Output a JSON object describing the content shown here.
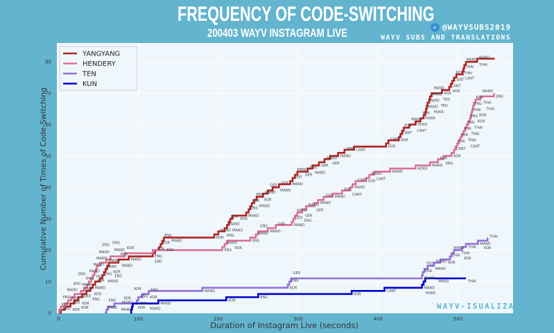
{
  "header": {
    "title": "FREQUENCY OF CODE-SWITCHING",
    "subtitle": "200403 WAYV INSTAGRAM LIVE",
    "handle": "@WAYVSUBS2019",
    "credit": "WAYV SUBS AND TRANSLATIONS",
    "watermark": "WAYV-ISUALIZATION"
  },
  "chart_data": {
    "type": "line",
    "step": true,
    "title": "FREQUENCY OF CODE-SWITCHING",
    "subtitle": "200403 WAYV INSTAGRAM LIVE",
    "xlabel": "Duration of Instagram Live (seconds)",
    "ylabel": "Cumulative Number of Times of Code-Switching",
    "xlim": [
      -2,
      569
    ],
    "ylim": [
      0,
      86
    ],
    "xticks": [
      0,
      100,
      200,
      300,
      400,
      500
    ],
    "yticks": [
      0,
      10,
      20,
      30,
      40,
      50,
      60,
      70,
      80
    ],
    "grid": true,
    "legend": "top-left",
    "series": [
      {
        "name": "YANGYANG",
        "color": "#b22222",
        "points": [
          [
            0,
            0,
            ""
          ],
          [
            3,
            1,
            "ENG"
          ],
          [
            8,
            2,
            "KOR"
          ],
          [
            15,
            3,
            "ENG"
          ],
          [
            20,
            4,
            "KOR"
          ],
          [
            25,
            5,
            "MAND"
          ],
          [
            30,
            6,
            "ENG"
          ],
          [
            35,
            7,
            "KOR"
          ],
          [
            40,
            8,
            "ENG"
          ],
          [
            43,
            9,
            "MAND"
          ],
          [
            46,
            10,
            "KOR"
          ],
          [
            52,
            11,
            "MAND"
          ],
          [
            55,
            12,
            "ENG"
          ],
          [
            57,
            13,
            "MAND"
          ],
          [
            59,
            14,
            "KOR"
          ],
          [
            61,
            15,
            "MAND"
          ],
          [
            63,
            16,
            "MAND"
          ],
          [
            75,
            17,
            "KOR"
          ],
          [
            88,
            18,
            "MAND"
          ],
          [
            118,
            19,
            "ENG"
          ],
          [
            121,
            20,
            "KOR"
          ],
          [
            126,
            21,
            "ENG"
          ],
          [
            128,
            22,
            "KOR"
          ],
          [
            130,
            23,
            "ENG"
          ],
          [
            132,
            24,
            "MAND"
          ],
          [
            195,
            25,
            "KOR"
          ],
          [
            200,
            26,
            "MAND"
          ],
          [
            208,
            27,
            "ENG"
          ],
          [
            211,
            28,
            "MAND"
          ],
          [
            213,
            29,
            "KOR"
          ],
          [
            215,
            30,
            "MAND"
          ],
          [
            218,
            31,
            "KOR"
          ],
          [
            235,
            32,
            "MAND"
          ],
          [
            238,
            33,
            "ENG"
          ],
          [
            240,
            34,
            "KOR"
          ],
          [
            242,
            35,
            "MAND"
          ],
          [
            245,
            36,
            "ENG"
          ],
          [
            248,
            37,
            "KOR"
          ],
          [
            256,
            38,
            "MAND"
          ],
          [
            262,
            39,
            "GER"
          ],
          [
            268,
            40,
            "MAND"
          ],
          [
            276,
            41,
            "GER"
          ],
          [
            290,
            42,
            "MAND"
          ],
          [
            293,
            43,
            "GER"
          ],
          [
            296,
            44,
            "MAND"
          ],
          [
            299,
            45,
            "GER"
          ],
          [
            312,
            46,
            "ENG"
          ],
          [
            318,
            47,
            "MAND"
          ],
          [
            326,
            48,
            "GER"
          ],
          [
            333,
            49,
            "MAND"
          ],
          [
            340,
            50,
            "GER"
          ],
          [
            350,
            51,
            "MAND"
          ],
          [
            358,
            52,
            "GER"
          ],
          [
            370,
            53,
            "CANT"
          ],
          [
            410,
            54,
            "KOR"
          ],
          [
            413,
            55,
            "CANT"
          ],
          [
            426,
            56,
            "KOR"
          ],
          [
            428,
            57,
            "CANT"
          ],
          [
            430,
            58,
            "KOR"
          ],
          [
            432,
            59,
            "CANT"
          ],
          [
            439,
            60,
            "MAND"
          ],
          [
            447,
            61,
            "HOKK"
          ],
          [
            453,
            62,
            "KOR"
          ],
          [
            457,
            63,
            "HOKK"
          ],
          [
            459,
            64,
            "MAND"
          ],
          [
            460,
            65,
            "HOKK"
          ],
          [
            461,
            66,
            "MAND"
          ],
          [
            462,
            67,
            "TEO"
          ],
          [
            464,
            68,
            "MAND"
          ],
          [
            465,
            69,
            "TEO"
          ],
          [
            467,
            70,
            "MAND"
          ],
          [
            480,
            71,
            "KOR"
          ],
          [
            489,
            72,
            "CANT"
          ],
          [
            491,
            73,
            "KOR"
          ],
          [
            493,
            74,
            "CANT"
          ],
          [
            495,
            75,
            "KOR"
          ],
          [
            498,
            76,
            "THAI"
          ],
          [
            506,
            77,
            "CANT"
          ],
          [
            507,
            78,
            "THAI"
          ],
          [
            508,
            79,
            "MAND"
          ],
          [
            510,
            80,
            "THAI"
          ],
          [
            524,
            81,
            "MAND"
          ],
          [
            546,
            81,
            ""
          ]
        ]
      },
      {
        "name": "HENDERY",
        "color": "#db7093",
        "points": [
          [
            0,
            0,
            ""
          ],
          [
            1,
            1,
            "KOR"
          ],
          [
            3,
            2,
            "ENG"
          ],
          [
            8,
            3,
            "MAND"
          ],
          [
            12,
            4,
            "KOR"
          ],
          [
            16,
            5,
            "ENG"
          ],
          [
            20,
            6,
            "MAND"
          ],
          [
            28,
            7,
            "KOR"
          ],
          [
            32,
            8,
            "ENG"
          ],
          [
            36,
            9,
            "MAND"
          ],
          [
            38,
            10,
            "KOR"
          ],
          [
            41,
            11,
            "MAND"
          ],
          [
            43,
            12,
            "ENG"
          ],
          [
            45,
            13,
            "MAND"
          ],
          [
            47,
            14,
            "ENG"
          ],
          [
            48,
            15,
            "MAND"
          ],
          [
            52,
            16,
            "ENG"
          ],
          [
            60,
            17,
            "MAND"
          ],
          [
            65,
            18,
            "ENG"
          ],
          [
            83,
            19,
            "KOR"
          ],
          [
            118,
            20,
            "ENG"
          ],
          [
            205,
            21,
            "ENG"
          ],
          [
            208,
            22,
            "MAND"
          ],
          [
            211,
            23,
            "KOR"
          ],
          [
            240,
            24,
            "ENG"
          ],
          [
            247,
            25,
            "MAND"
          ],
          [
            250,
            26,
            "ENG"
          ],
          [
            262,
            27,
            "MAND"
          ],
          [
            272,
            28,
            "GER"
          ],
          [
            292,
            29,
            "MAND"
          ],
          [
            294,
            30,
            "GER"
          ],
          [
            296,
            31,
            "MAND"
          ],
          [
            299,
            32,
            "GER"
          ],
          [
            305,
            33,
            "ENG"
          ],
          [
            310,
            34,
            "MAND"
          ],
          [
            320,
            35,
            "GER"
          ],
          [
            325,
            36,
            "MAND"
          ],
          [
            332,
            37,
            "GER"
          ],
          [
            343,
            38,
            "MAND"
          ],
          [
            355,
            39,
            "ENG"
          ],
          [
            365,
            40,
            "CANT"
          ],
          [
            368,
            41,
            "MAND"
          ],
          [
            372,
            42,
            "CANT"
          ],
          [
            385,
            43,
            "KOR"
          ],
          [
            389,
            44,
            "MAND"
          ],
          [
            395,
            45,
            "CANT"
          ],
          [
            415,
            46,
            "MAND"
          ],
          [
            447,
            47,
            "HOKK"
          ],
          [
            465,
            48,
            "MAND"
          ],
          [
            475,
            49,
            "KOR"
          ],
          [
            482,
            50,
            "ENG"
          ],
          [
            492,
            51,
            "KOR"
          ],
          [
            495,
            52,
            "CANT"
          ],
          [
            497,
            53,
            "KOR"
          ],
          [
            499,
            54,
            "CANT"
          ],
          [
            501,
            55,
            "KOR"
          ],
          [
            503,
            56,
            "THAI"
          ],
          [
            505,
            57,
            "KOR"
          ],
          [
            507,
            58,
            "THAI"
          ],
          [
            509,
            59,
            "ENG"
          ],
          [
            511,
            60,
            "THAI"
          ],
          [
            513,
            61,
            "ENG"
          ],
          [
            515,
            62,
            "KOR"
          ],
          [
            516,
            63,
            "THAI"
          ],
          [
            517,
            64,
            "KOR"
          ],
          [
            518,
            65,
            "ENG"
          ],
          [
            519,
            66,
            "THAI"
          ],
          [
            520,
            67,
            "KOR"
          ],
          [
            522,
            68,
            "THAI"
          ],
          [
            528,
            69,
            "MAND"
          ],
          [
            545,
            70,
            "ENG"
          ]
        ]
      },
      {
        "name": "TEN",
        "color": "#9370db",
        "points": [
          [
            58,
            0,
            "MAND"
          ],
          [
            60,
            1,
            "ENG"
          ],
          [
            62,
            2,
            "MAND"
          ],
          [
            70,
            3,
            "MAND"
          ],
          [
            98,
            4,
            "KOR"
          ],
          [
            100,
            5,
            "ENG"
          ],
          [
            105,
            6,
            "KOR"
          ],
          [
            113,
            7,
            "ENG"
          ],
          [
            180,
            8,
            "MAND"
          ],
          [
            287,
            9,
            "KOR"
          ],
          [
            289,
            10,
            "ENG"
          ],
          [
            291,
            11,
            "GER"
          ],
          [
            455,
            12,
            "MAND"
          ],
          [
            456,
            13,
            "ENG"
          ],
          [
            458,
            14,
            "TEO"
          ],
          [
            462,
            15,
            "MAND"
          ],
          [
            470,
            16,
            "MAND"
          ],
          [
            478,
            17,
            "KOR"
          ],
          [
            490,
            18,
            "THAI"
          ],
          [
            492,
            19,
            "MAND"
          ],
          [
            495,
            20,
            "THAI"
          ],
          [
            505,
            21,
            "KOR"
          ],
          [
            510,
            22,
            "THAI"
          ],
          [
            525,
            23,
            "MAND"
          ],
          [
            530,
            23,
            "KOR"
          ],
          [
            537,
            24,
            "THAI"
          ]
        ]
      },
      {
        "name": "KUN",
        "color": "#0000cd",
        "points": [
          [
            90,
            0,
            "KOR"
          ],
          [
            91,
            1,
            "MAND"
          ],
          [
            92,
            2,
            "KOR"
          ],
          [
            93,
            3,
            "KOR"
          ],
          [
            125,
            4,
            "MAND"
          ],
          [
            210,
            5,
            "KOR"
          ],
          [
            250,
            6,
            "ENG"
          ],
          [
            367,
            7,
            "KOR"
          ],
          [
            408,
            8,
            "CANT"
          ],
          [
            455,
            9,
            "MAND"
          ],
          [
            457,
            10,
            "HOKK"
          ],
          [
            459,
            11,
            "MAND"
          ],
          [
            510,
            11,
            "THAI"
          ]
        ]
      }
    ]
  }
}
